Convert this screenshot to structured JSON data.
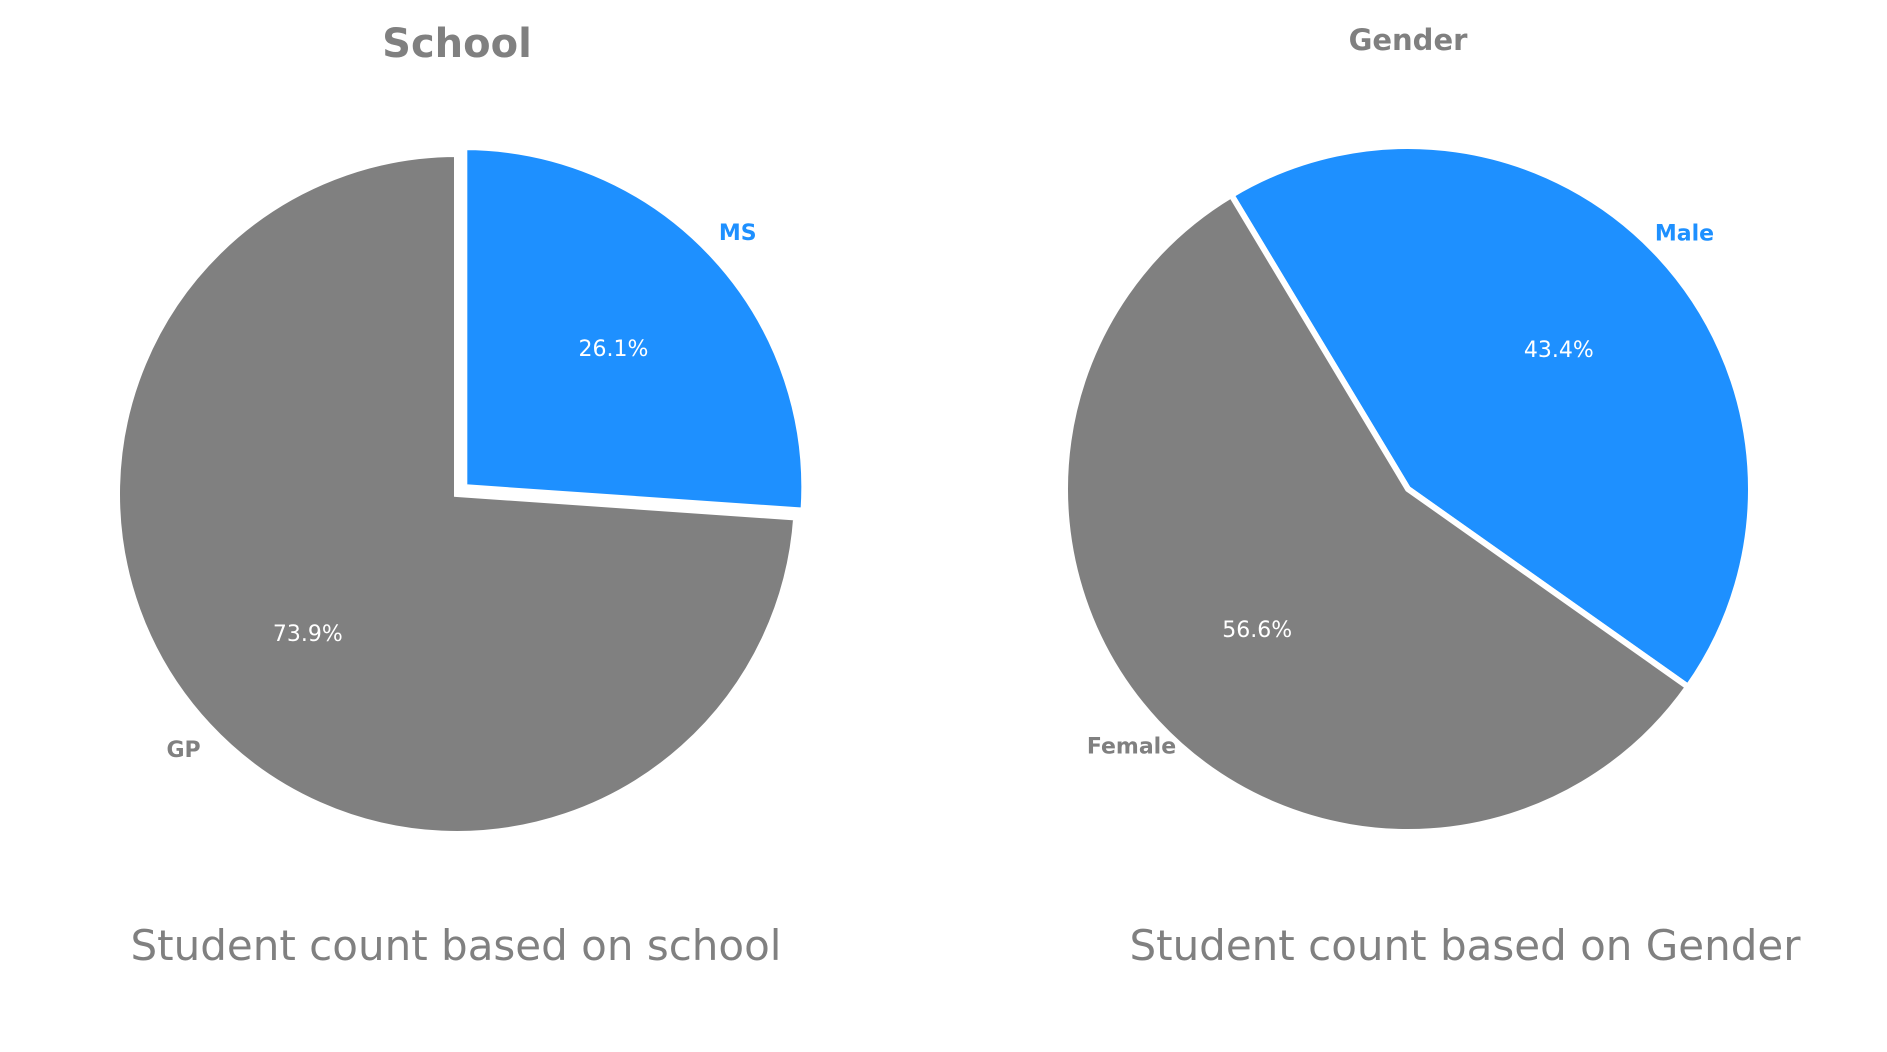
{
  "colors": {
    "gray": "#808080",
    "blue": "#1E90FF",
    "text_gray": "#808080",
    "white": "#ffffff"
  },
  "chart_data": [
    {
      "type": "pie",
      "title": "School",
      "slices": [
        {
          "label": "MS",
          "value": 26.1,
          "pct_label": "26.1%",
          "color": "#1E90FF",
          "exploded": true
        },
        {
          "label": "GP",
          "value": 73.9,
          "pct_label": "73.9%",
          "color": "#808080",
          "exploded": false
        }
      ],
      "caption": "Student count based on school"
    },
    {
      "type": "pie",
      "title": "Gender",
      "slices": [
        {
          "label": "Male",
          "value": 43.4,
          "pct_label": "43.4%",
          "color": "#1E90FF",
          "exploded": false
        },
        {
          "label": "Female",
          "value": 56.6,
          "pct_label": "56.6%",
          "color": "#808080",
          "exploded": false
        }
      ],
      "caption": "Student count based on Gender"
    }
  ]
}
